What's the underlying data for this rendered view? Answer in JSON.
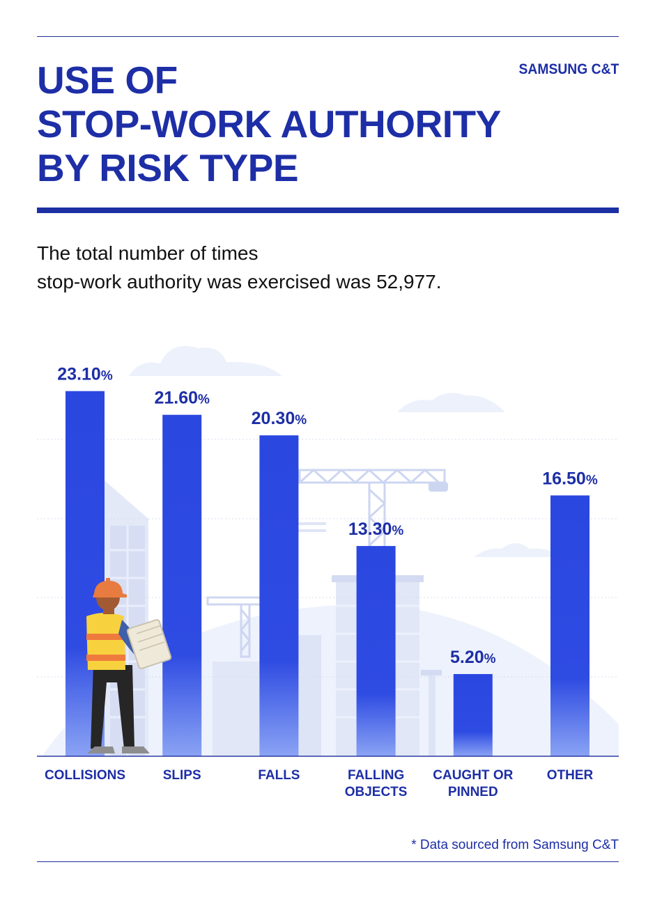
{
  "header": {
    "title_lines": [
      "USE OF",
      "STOP-WORK AUTHORITY",
      "BY RISK TYPE"
    ],
    "brand": "SAMSUNG C&T"
  },
  "subtitle_lines": [
    "The total number of times",
    "stop-work authority was exercised was 52,977."
  ],
  "footnote": "* Data sourced from Samsung C&T",
  "colors": {
    "bar_top": "#2a47e0",
    "bar_bottom": "#7f9af2",
    "title": "#1d2ea6",
    "background_illustration": "#e6ecfb"
  },
  "chart_data": {
    "type": "bar",
    "title": "",
    "xlabel": "",
    "ylabel": "",
    "unit": "%",
    "categories": [
      [
        "COLLISIONS"
      ],
      [
        "SLIPS"
      ],
      [
        "FALLS"
      ],
      [
        "FALLING",
        "OBJECTS"
      ],
      [
        "CAUGHT OR",
        "PINNED"
      ],
      [
        "OTHER"
      ]
    ],
    "values": [
      23.1,
      21.6,
      20.3,
      13.3,
      5.2,
      16.5
    ],
    "value_labels": [
      "23.10",
      "21.60",
      "20.30",
      "13.30",
      "5.20",
      "16.50"
    ],
    "ylim": [
      0,
      25
    ],
    "grid": true,
    "legend": "none"
  }
}
